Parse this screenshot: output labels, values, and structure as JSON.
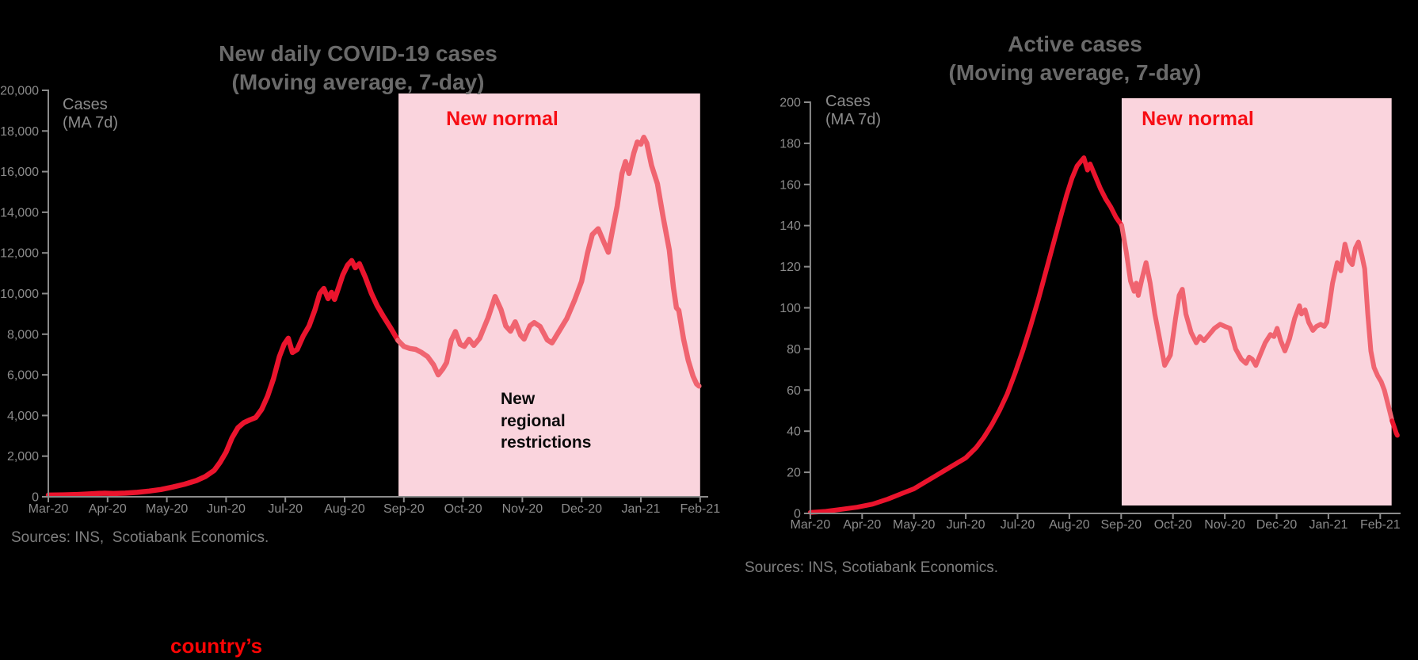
{
  "page": {
    "background": "#000000"
  },
  "colors": {
    "title_gray": "#6a6a6a",
    "axis_gray": "#8b8b8b",
    "source_gray": "#7f7f7f",
    "line_red": "#EB142D",
    "line_red_light": "#F06470",
    "band_pink": "#FAD4DD",
    "label_red": "#F70D14",
    "annotation_black": "#0a0a0a",
    "link_red": "#FB0505"
  },
  "footer": {
    "link_text": "country’s"
  },
  "chart_data": [
    {
      "type": "line",
      "title": "New daily COVID-19 cases",
      "subtitle": "(Moving average, 7-day)",
      "axis_note": "Cases\n(MA 7d)",
      "source": "Sources: INS,  Scotiabank Economics.",
      "x_tick_labels": [
        "Mar-20",
        "Apr-20",
        "May-20",
        "Jun-20",
        "Jul-20",
        "Aug-20",
        "Sep-20",
        "Oct-20",
        "Nov-20",
        "Dec-20",
        "Jan-21",
        "Feb-21"
      ],
      "ylim": [
        0,
        20000
      ],
      "y_step": 2000,
      "y_format": "thousands",
      "grid": false,
      "legend": "none",
      "band": {
        "label": "New normal",
        "x_start": 5.91,
        "x_end": 11.0
      },
      "annotation": "New\nregional\nrestrictions",
      "series": [
        {
          "name": "New daily COVID-19 cases (7-day MA)",
          "points": [
            [
              0,
              80
            ],
            [
              0.25,
              95
            ],
            [
              0.5,
              115
            ],
            [
              0.7,
              140
            ],
            [
              0.85,
              165
            ],
            [
              0.95,
              175
            ],
            [
              1.1,
              158
            ],
            [
              1.3,
              180
            ],
            [
              1.5,
              220
            ],
            [
              1.7,
              280
            ],
            [
              1.9,
              360
            ],
            [
              2.1,
              480
            ],
            [
              2.3,
              620
            ],
            [
              2.5,
              800
            ],
            [
              2.65,
              1000
            ],
            [
              2.8,
              1300
            ],
            [
              2.9,
              1700
            ],
            [
              3.0,
              2200
            ],
            [
              3.1,
              2900
            ],
            [
              3.2,
              3400
            ],
            [
              3.3,
              3650
            ],
            [
              3.4,
              3780
            ],
            [
              3.5,
              3900
            ],
            [
              3.6,
              4300
            ],
            [
              3.7,
              4950
            ],
            [
              3.8,
              5800
            ],
            [
              3.9,
              6900
            ],
            [
              3.98,
              7500
            ],
            [
              4.05,
              7800
            ],
            [
              4.12,
              7100
            ],
            [
              4.2,
              7250
            ],
            [
              4.3,
              7900
            ],
            [
              4.4,
              8400
            ],
            [
              4.5,
              9200
            ],
            [
              4.58,
              10000
            ],
            [
              4.65,
              10250
            ],
            [
              4.72,
              9750
            ],
            [
              4.78,
              10060
            ],
            [
              4.83,
              9710
            ],
            [
              4.9,
              10300
            ],
            [
              4.97,
              10920
            ],
            [
              5.05,
              11390
            ],
            [
              5.12,
              11620
            ],
            [
              5.18,
              11270
            ],
            [
              5.25,
              11470
            ],
            [
              5.35,
              10800
            ],
            [
              5.45,
              10020
            ],
            [
              5.55,
              9400
            ],
            [
              5.65,
              8900
            ],
            [
              5.78,
              8300
            ],
            [
              5.9,
              7700
            ],
            [
              6.0,
              7400
            ],
            [
              6.1,
              7300
            ],
            [
              6.2,
              7250
            ],
            [
              6.3,
              7100
            ],
            [
              6.4,
              6900
            ],
            [
              6.5,
              6500
            ],
            [
              6.58,
              6000
            ],
            [
              6.66,
              6300
            ],
            [
              6.72,
              6600
            ],
            [
              6.8,
              7700
            ],
            [
              6.87,
              8130
            ],
            [
              6.95,
              7500
            ],
            [
              7.02,
              7400
            ],
            [
              7.1,
              7750
            ],
            [
              7.18,
              7450
            ],
            [
              7.28,
              7800
            ],
            [
              7.42,
              8800
            ],
            [
              7.54,
              9850
            ],
            [
              7.64,
              9200
            ],
            [
              7.72,
              8400
            ],
            [
              7.8,
              8150
            ],
            [
              7.88,
              8610
            ],
            [
              7.97,
              7950
            ],
            [
              8.03,
              7760
            ],
            [
              8.13,
              8420
            ],
            [
              8.2,
              8570
            ],
            [
              8.3,
              8380
            ],
            [
              8.42,
              7720
            ],
            [
              8.5,
              7570
            ],
            [
              8.62,
              8150
            ],
            [
              8.75,
              8770
            ],
            [
              8.88,
              9660
            ],
            [
              9.0,
              10600
            ],
            [
              9.1,
              12000
            ],
            [
              9.18,
              12900
            ],
            [
              9.28,
              13190
            ],
            [
              9.38,
              12500
            ],
            [
              9.45,
              12030
            ],
            [
              9.52,
              13100
            ],
            [
              9.6,
              14300
            ],
            [
              9.68,
              15900
            ],
            [
              9.74,
              16490
            ],
            [
              9.8,
              15910
            ],
            [
              9.88,
              16900
            ],
            [
              9.94,
              17460
            ],
            [
              10.0,
              17350
            ],
            [
              10.05,
              17690
            ],
            [
              10.1,
              17400
            ],
            [
              10.18,
              16300
            ],
            [
              10.28,
              15400
            ],
            [
              10.38,
              13700
            ],
            [
              10.48,
              12140
            ],
            [
              10.55,
              10300
            ],
            [
              10.6,
              9300
            ],
            [
              10.64,
              9170
            ],
            [
              10.72,
              7760
            ],
            [
              10.8,
              6710
            ],
            [
              10.88,
              5940
            ],
            [
              10.94,
              5550
            ],
            [
              10.98,
              5450
            ]
          ]
        }
      ]
    },
    {
      "type": "line",
      "title": "Active cases",
      "subtitle": "(Moving average, 7-day)",
      "axis_note": "Cases\n(MA 7d)",
      "source": "Sources: INS, Scotiabank Economics.",
      "x_tick_labels": [
        "Mar-20",
        "Apr-20",
        "May-20",
        "Jun-20",
        "Jul-20",
        "Aug-20",
        "Sep-20",
        "Oct-20",
        "Nov-20",
        "Dec-20",
        "Jan-21",
        "Feb-21"
      ],
      "ylim": [
        0,
        200
      ],
      "y_step": 20,
      "y_format": "plain",
      "grid": false,
      "legend": "none",
      "band": {
        "label": "New normal",
        "x_start": 6.01,
        "x_end": 11.22
      },
      "annotation": "",
      "series": [
        {
          "name": "Active cases (7-day MA)",
          "points": [
            [
              0,
              0.5
            ],
            [
              0.3,
              1
            ],
            [
              0.6,
              2
            ],
            [
              0.9,
              3
            ],
            [
              1.2,
              4.5
            ],
            [
              1.5,
              7
            ],
            [
              1.8,
              10
            ],
            [
              2.0,
              12
            ],
            [
              2.2,
              15
            ],
            [
              2.4,
              18
            ],
            [
              2.6,
              21
            ],
            [
              2.8,
              24
            ],
            [
              3.0,
              27
            ],
            [
              3.2,
              32
            ],
            [
              3.35,
              37
            ],
            [
              3.5,
              43
            ],
            [
              3.65,
              50
            ],
            [
              3.8,
              58
            ],
            [
              3.95,
              68
            ],
            [
              4.1,
              79
            ],
            [
              4.25,
              91
            ],
            [
              4.4,
              104
            ],
            [
              4.55,
              118
            ],
            [
              4.7,
              132
            ],
            [
              4.85,
              146
            ],
            [
              4.95,
              155
            ],
            [
              5.05,
              163
            ],
            [
              5.15,
              169
            ],
            [
              5.28,
              173
            ],
            [
              5.35,
              167
            ],
            [
              5.4,
              170
            ],
            [
              5.5,
              164
            ],
            [
              5.6,
              158
            ],
            [
              5.7,
              153
            ],
            [
              5.8,
              149
            ],
            [
              5.9,
              144
            ],
            [
              6.01,
              140
            ],
            [
              6.1,
              127
            ],
            [
              6.18,
              113
            ],
            [
              6.25,
              108
            ],
            [
              6.29,
              112
            ],
            [
              6.33,
              106
            ],
            [
              6.4,
              114
            ],
            [
              6.48,
              122
            ],
            [
              6.56,
              112
            ],
            [
              6.65,
              97
            ],
            [
              6.75,
              84
            ],
            [
              6.84,
              72
            ],
            [
              6.95,
              77
            ],
            [
              7.05,
              95
            ],
            [
              7.12,
              106
            ],
            [
              7.18,
              109
            ],
            [
              7.25,
              97
            ],
            [
              7.35,
              88
            ],
            [
              7.45,
              83
            ],
            [
              7.52,
              86
            ],
            [
              7.6,
              84
            ],
            [
              7.7,
              87
            ],
            [
              7.8,
              90
            ],
            [
              7.91,
              92
            ],
            [
              8.0,
              91
            ],
            [
              8.1,
              90
            ],
            [
              8.21,
              80
            ],
            [
              8.32,
              75
            ],
            [
              8.41,
              73
            ],
            [
              8.47,
              76
            ],
            [
              8.53,
              75
            ],
            [
              8.6,
              72
            ],
            [
              8.68,
              77
            ],
            [
              8.78,
              83
            ],
            [
              8.88,
              87
            ],
            [
              8.95,
              86
            ],
            [
              9.01,
              90
            ],
            [
              9.08,
              84
            ],
            [
              9.16,
              79
            ],
            [
              9.25,
              85
            ],
            [
              9.35,
              95
            ],
            [
              9.44,
              101
            ],
            [
              9.48,
              97
            ],
            [
              9.55,
              99
            ],
            [
              9.62,
              93
            ],
            [
              9.7,
              89
            ],
            [
              9.77,
              91
            ],
            [
              9.85,
              92
            ],
            [
              9.92,
              91
            ],
            [
              9.97,
              93
            ],
            [
              10.08,
              112
            ],
            [
              10.17,
              122
            ],
            [
              10.24,
              118
            ],
            [
              10.32,
              131
            ],
            [
              10.4,
              123
            ],
            [
              10.46,
              121
            ],
            [
              10.52,
              129
            ],
            [
              10.58,
              132
            ],
            [
              10.65,
              125
            ],
            [
              10.7,
              119
            ],
            [
              10.76,
              97
            ],
            [
              10.82,
              79
            ],
            [
              10.88,
              71
            ],
            [
              10.95,
              67
            ],
            [
              11.02,
              64
            ],
            [
              11.08,
              60
            ],
            [
              11.13,
              55
            ],
            [
              11.18,
              50
            ],
            [
              11.23,
              45
            ],
            [
              11.27,
              42
            ],
            [
              11.31,
              39
            ],
            [
              11.33,
              38
            ]
          ]
        }
      ]
    }
  ]
}
